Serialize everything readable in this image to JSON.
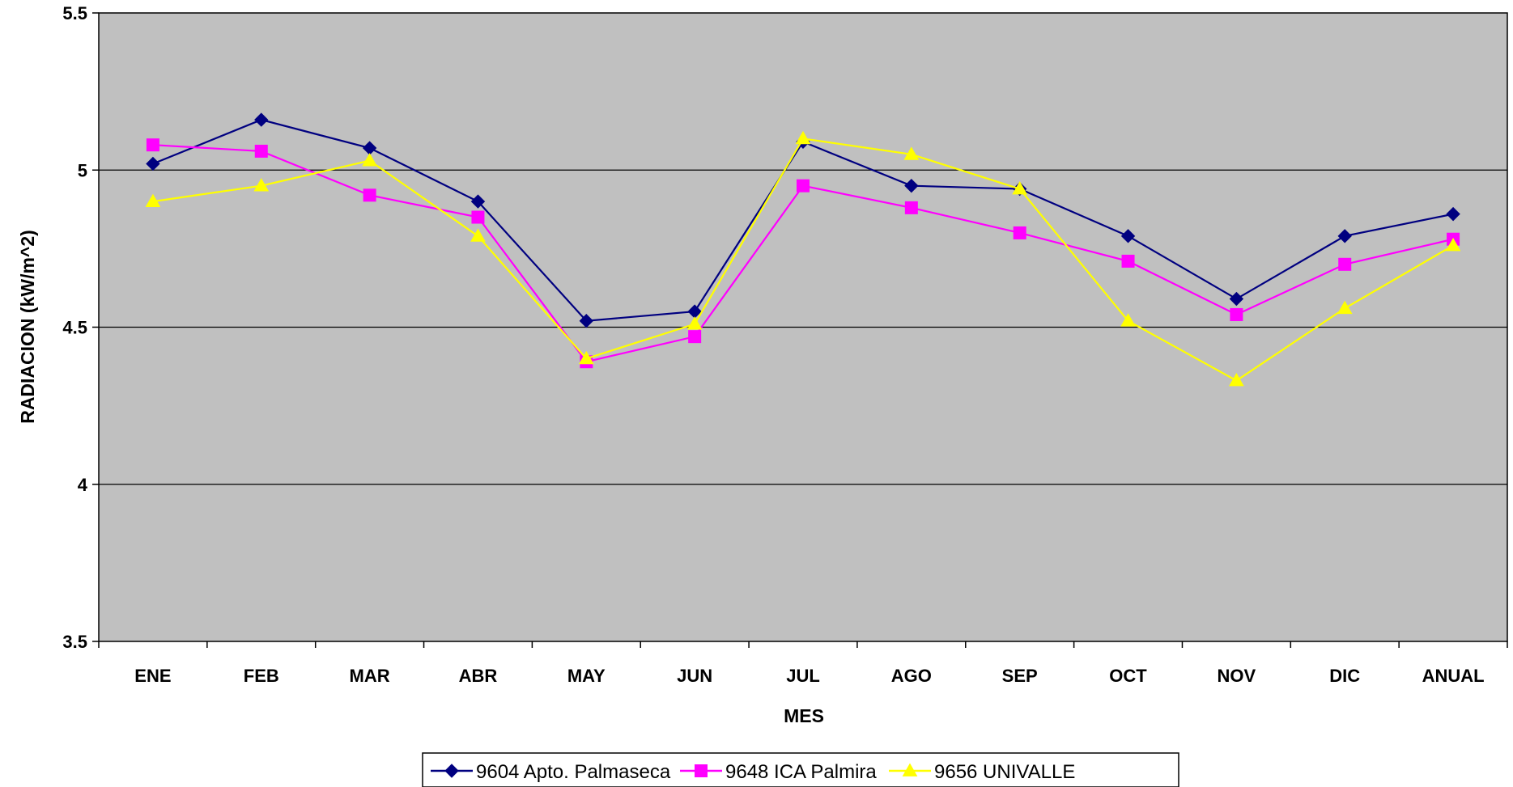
{
  "chart_data": {
    "type": "line",
    "xlabel": "MES",
    "ylabel": "RADIACION (kW/m^2)",
    "ylim": [
      3.5,
      5.5
    ],
    "yticks": [
      "3.5",
      "4",
      "4.5",
      "5",
      "5.5"
    ],
    "ytick_values": [
      3.5,
      4,
      4.5,
      5,
      5.5
    ],
    "grid": true,
    "legend_position": "bottom",
    "background_color": "#C0C0C0",
    "categories": [
      "ENE",
      "FEB",
      "MAR",
      "ABR",
      "MAY",
      "JUN",
      "JUL",
      "AGO",
      "SEP",
      "OCT",
      "NOV",
      "DIC",
      "ANUAL"
    ],
    "series": [
      {
        "name": "9604 Apto. Palmaseca",
        "color": "#000080",
        "marker": "diamond",
        "values": [
          5.02,
          5.16,
          5.07,
          4.9,
          4.52,
          4.55,
          5.09,
          4.95,
          4.94,
          4.79,
          4.59,
          4.79,
          4.86
        ]
      },
      {
        "name": "9648 ICA Palmira",
        "color": "#FF00FF",
        "marker": "square",
        "values": [
          5.08,
          5.06,
          4.92,
          4.85,
          4.39,
          4.47,
          4.95,
          4.88,
          4.8,
          4.71,
          4.54,
          4.7,
          4.78
        ]
      },
      {
        "name": "9656 UNIVALLE",
        "color": "#FFFF00",
        "marker": "triangle",
        "values": [
          4.9,
          4.95,
          5.03,
          4.79,
          4.4,
          4.51,
          5.1,
          5.05,
          4.94,
          4.52,
          4.33,
          4.56,
          4.76
        ]
      }
    ]
  }
}
